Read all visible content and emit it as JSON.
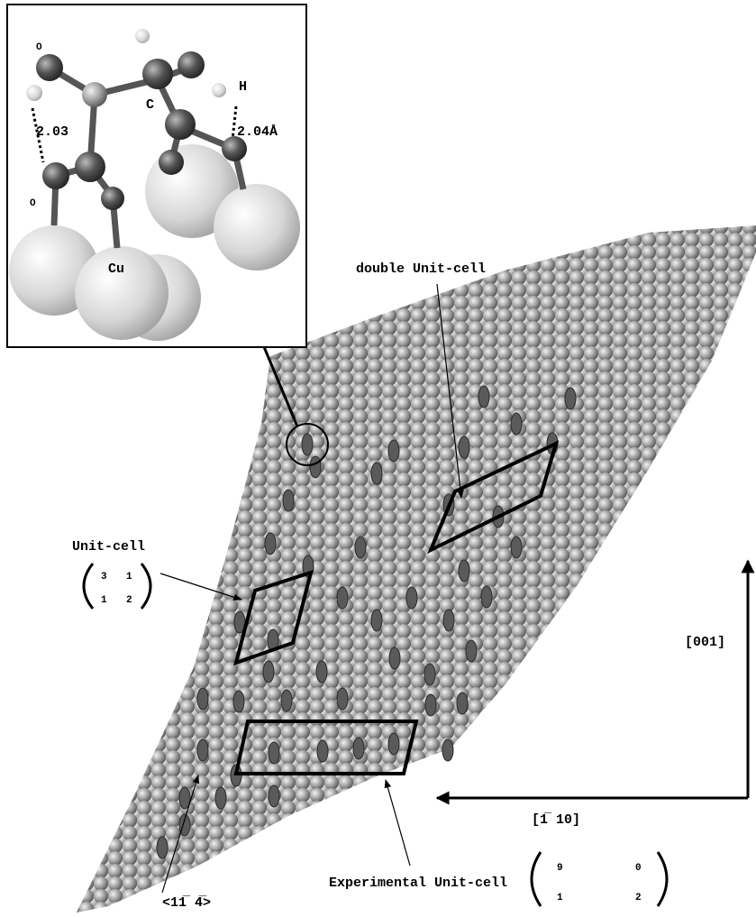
{
  "inset": {
    "labels": {
      "oxygen_top": "O",
      "oxygen_left": "O",
      "carbon": "C",
      "hydrogen": "H",
      "bond_left": "2.03",
      "bond_right": "2.04Å",
      "copper": "Cu"
    }
  },
  "annotations": {
    "double_unit_cell": "double Unit-cell",
    "unit_cell": "Unit-cell",
    "unit_cell_matrix": [
      [
        3,
        1
      ],
      [
        1,
        2
      ]
    ],
    "experimental_unit_cell": "Experimental Unit-cell",
    "experimental_matrix": [
      [
        9,
        0
      ],
      [
        1,
        2
      ]
    ],
    "direction_vertical": "[001]",
    "direction_horizontal": "[1̅ 10]",
    "direction_diagonal": "<11̅ 4̅>"
  }
}
